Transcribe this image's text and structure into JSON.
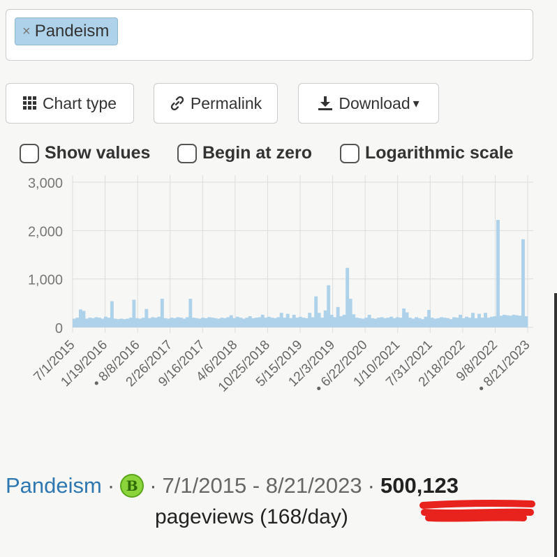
{
  "search": {
    "chip_remove": "×",
    "chip_label": "Pandeism"
  },
  "toolbar": {
    "chart_type_label": "Chart type",
    "permalink_label": "Permalink",
    "download_label": "Download",
    "dropdown_caret": "▾"
  },
  "options": {
    "show_values": "Show values",
    "begin_at_zero": "Begin at zero",
    "logarithmic_scale": "Logarithmic scale"
  },
  "colors": {
    "bar": "#aed2ea",
    "link": "#2e77b0",
    "badge": "#8bd43b",
    "underline": "#e8231e"
  },
  "chart_data": {
    "type": "bar",
    "ylim": [
      0,
      3000
    ],
    "y_ticks": [
      "0",
      "1,000",
      "2,000",
      "3,000"
    ],
    "x_tick_labels": [
      "7/1/2015",
      "1/19/2016",
      "• 8/8/2016",
      "2/26/2017",
      "9/16/2017",
      "4/6/2018",
      "10/25/2018",
      "5/15/2019",
      "12/3/2019",
      "• 6/22/2020",
      "1/10/2021",
      "7/31/2021",
      "2/18/2022",
      "9/8/2022",
      "• 8/21/2023"
    ],
    "grid": true,
    "values": [
      180,
      200,
      370,
      340,
      180,
      200,
      190,
      210,
      200,
      180,
      220,
      200,
      540,
      180,
      170,
      180,
      170,
      180,
      200,
      570,
      190,
      180,
      200,
      380,
      190,
      210,
      200,
      220,
      590,
      190,
      180,
      200,
      190,
      210,
      200,
      180,
      210,
      590,
      200,
      190,
      180,
      200,
      190,
      210,
      200,
      190,
      180,
      200,
      190,
      210,
      250,
      190,
      220,
      200,
      180,
      200,
      230,
      190,
      200,
      210,
      260,
      200,
      220,
      200,
      190,
      210,
      300,
      200,
      280,
      190,
      260,
      200,
      220,
      200,
      190,
      300,
      210,
      640,
      300,
      200,
      350,
      870,
      260,
      210,
      420,
      230,
      260,
      1230,
      590,
      270,
      200,
      190,
      180,
      200,
      260,
      190,
      180,
      200,
      210,
      190,
      200,
      220,
      190,
      210,
      200,
      390,
      310,
      200,
      180,
      210,
      190,
      170,
      220,
      360,
      200,
      180,
      190,
      210,
      200,
      190,
      170,
      210,
      200,
      260,
      190,
      220,
      200,
      300,
      190,
      280,
      200,
      300,
      200,
      220,
      230,
      2220,
      240,
      260,
      250,
      240,
      260,
      250,
      240,
      1820,
      230
    ]
  },
  "footer": {
    "article": "Pandeism",
    "sep": "·",
    "badge_letter": "B",
    "date_range": "7/1/2015 - 8/21/2023",
    "total": "500,123",
    "pageviews_line": "pageviews (168/day)"
  }
}
